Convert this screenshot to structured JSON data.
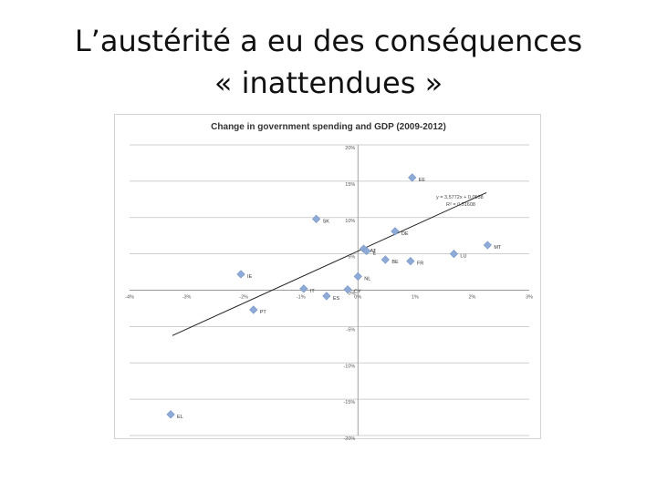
{
  "slide": {
    "title_line1": "L’austérité a eu des conséquences",
    "title_line2": "« inattendues »"
  },
  "chart_data": {
    "type": "scatter",
    "title": "Change in government spending and GDP (2009-2012)",
    "xlabel": "",
    "ylabel": "",
    "xlim": [
      -0.04,
      0.03
    ],
    "ylim": [
      -0.2,
      0.2
    ],
    "x_ticks": [
      {
        "value": -0.04,
        "label": "-4%"
      },
      {
        "value": -0.03,
        "label": "-3%"
      },
      {
        "value": -0.02,
        "label": "-2%"
      },
      {
        "value": -0.01,
        "label": "-1%"
      },
      {
        "value": 0.0,
        "label": "0%"
      },
      {
        "value": 0.01,
        "label": "1%"
      },
      {
        "value": 0.02,
        "label": "2%"
      },
      {
        "value": 0.03,
        "label": "3%"
      }
    ],
    "y_ticks": [
      {
        "value": 0.2,
        "label": "20%"
      },
      {
        "value": 0.15,
        "label": "15%"
      },
      {
        "value": 0.1,
        "label": "10%"
      },
      {
        "value": 0.05,
        "label": "5%"
      },
      {
        "value": 0.0,
        "label": "0%"
      },
      {
        "value": -0.05,
        "label": "-5%"
      },
      {
        "value": -0.1,
        "label": "-10%"
      },
      {
        "value": -0.15,
        "label": "-15%"
      },
      {
        "value": -0.2,
        "label": "-20%"
      }
    ],
    "grid": "horizontal",
    "marker_color": "#8eaad6",
    "trendline": {
      "slope": 3.5772,
      "intercept": 0.0538,
      "x_range": [
        -0.0325,
        0.0225
      ],
      "color": "#222222"
    },
    "annotation": {
      "line1": "y = 3,5772x + 0,0538",
      "line2": "R² = 0,51608"
    },
    "points": [
      {
        "label": "EE",
        "x": 0.0095,
        "y": 0.155
      },
      {
        "label": "SK",
        "x": -0.0073,
        "y": 0.098
      },
      {
        "label": "DE",
        "x": 0.0065,
        "y": 0.081
      },
      {
        "label": "AT",
        "x": 0.001,
        "y": 0.057
      },
      {
        "label": "E",
        "x": 0.0015,
        "y": 0.054
      },
      {
        "label": "MT",
        "x": 0.0227,
        "y": 0.062
      },
      {
        "label": "LU",
        "x": 0.0168,
        "y": 0.05
      },
      {
        "label": "BE",
        "x": 0.0048,
        "y": 0.042
      },
      {
        "label": "FR",
        "x": 0.0092,
        "y": 0.04
      },
      {
        "label": "IE",
        "x": -0.0205,
        "y": 0.022
      },
      {
        "label": "NL",
        "x": 0.0,
        "y": 0.019
      },
      {
        "label": "IT",
        "x": -0.0095,
        "y": 0.002
      },
      {
        "label": "ES",
        "x": -0.0055,
        "y": -0.008
      },
      {
        "label": "CY",
        "x": -0.0018,
        "y": 0.001
      },
      {
        "label": "PT",
        "x": -0.0183,
        "y": -0.027
      },
      {
        "label": "EL",
        "x": -0.0328,
        "y": -0.171
      }
    ]
  }
}
